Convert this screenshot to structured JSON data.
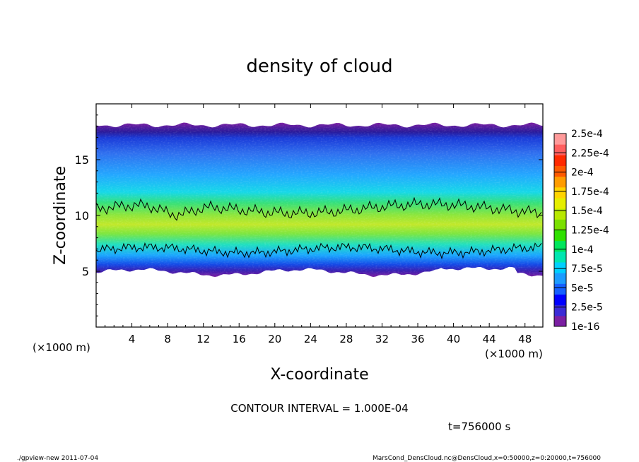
{
  "chart_data": {
    "type": "heatmap",
    "title": "density of cloud",
    "xlabel": "X-coordinate",
    "ylabel": "Z-coordinate",
    "x_unit_left": "(×1000 m)",
    "x_unit_right": "(×1000 m)",
    "xlim": [
      0,
      50
    ],
    "ylim": [
      0,
      20
    ],
    "xticks": [
      4,
      8,
      12,
      16,
      20,
      24,
      28,
      32,
      36,
      40,
      44,
      48
    ],
    "yticks": [
      5,
      10,
      15
    ],
    "colorbar": {
      "labels": [
        "1e-16",
        "2.5e-5",
        "5e-5",
        "7.5e-5",
        "1e-4",
        "1.25e-4",
        "1.5e-4",
        "1.75e-4",
        "2e-4",
        "2.25e-4",
        "2.5e-4"
      ],
      "colors": [
        "#7b1fa2",
        "#3b2bd6",
        "#0000ff",
        "#1560ff",
        "#1c9cff",
        "#00d0ff",
        "#00e6b0",
        "#00e65c",
        "#2fe000",
        "#7be000",
        "#b8e800",
        "#e6ee00",
        "#ffd400",
        "#ff9c00",
        "#ff5a00",
        "#ff2a00",
        "#ff5f5f",
        "#ff9a9a"
      ]
    },
    "contour_levels": [
      0.0001
    ],
    "grid": false,
    "legend": "right"
  },
  "footer": {
    "contour_interval": "CONTOUR INTERVAL = 1.000E-04",
    "time": "t=756000 s",
    "program": "./gpview-new   2011-07-04",
    "source": "MarsCond_DensCloud.nc@DensCloud,x=0:50000,z=0:20000,t=756000"
  }
}
